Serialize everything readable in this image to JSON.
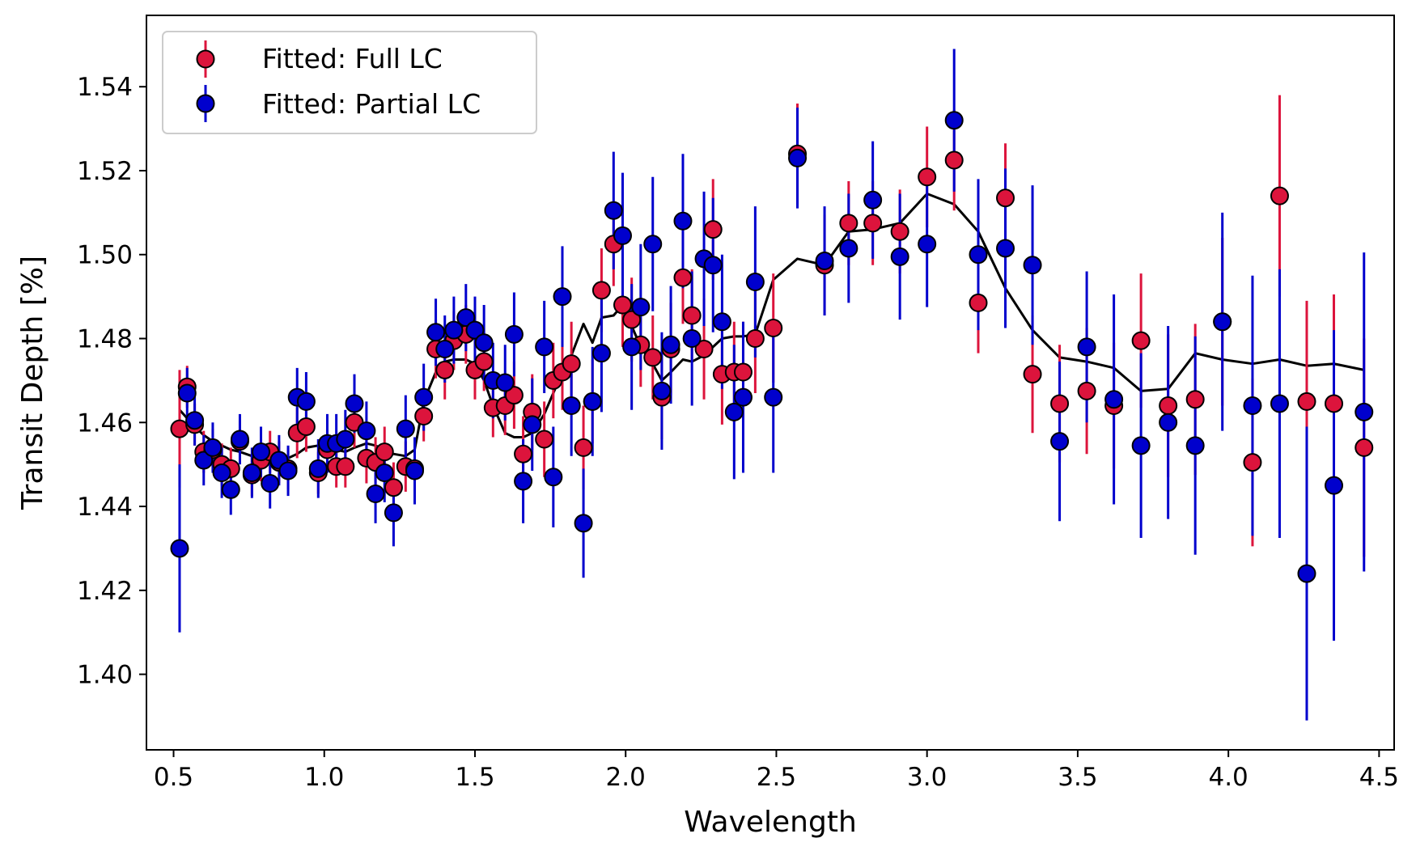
{
  "chart_data": {
    "type": "scatter",
    "title": "",
    "xlabel": "Wavelength",
    "ylabel": "Transit Depth [%]",
    "xlim": [
      0.41,
      4.55
    ],
    "ylim": [
      1.382,
      1.557
    ],
    "x_ticks": [
      0.5,
      1.0,
      1.5,
      2.0,
      2.5,
      3.0,
      3.5,
      4.0,
      4.5
    ],
    "x_tick_labels": [
      "0.5",
      "1.0",
      "1.5",
      "2.0",
      "2.5",
      "3.0",
      "3.5",
      "4.0",
      "4.5"
    ],
    "y_ticks": [
      1.4,
      1.42,
      1.44,
      1.46,
      1.48,
      1.5,
      1.52,
      1.54
    ],
    "y_tick_labels": [
      "1.40",
      "1.42",
      "1.44",
      "1.46",
      "1.48",
      "1.50",
      "1.52",
      "1.54"
    ],
    "grid": false,
    "legend_position": "top-left",
    "series": [
      {
        "name": "Fitted: Full LC",
        "color": "#dc143c",
        "points": [
          [
            0.52,
            1.4585,
            0.014
          ],
          [
            0.545,
            1.4685,
            0.005
          ],
          [
            0.57,
            1.4595,
            0.005
          ],
          [
            0.6,
            1.453,
            0.005
          ],
          [
            0.63,
            1.4535,
            0.005
          ],
          [
            0.66,
            1.45,
            0.005
          ],
          [
            0.69,
            1.449,
            0.005
          ],
          [
            0.72,
            1.4555,
            0.005
          ],
          [
            0.76,
            1.4475,
            0.005
          ],
          [
            0.79,
            1.451,
            0.005
          ],
          [
            0.82,
            1.453,
            0.005
          ],
          [
            0.85,
            1.4505,
            0.005
          ],
          [
            0.88,
            1.449,
            0.005
          ],
          [
            0.91,
            1.4575,
            0.006
          ],
          [
            0.94,
            1.459,
            0.006
          ],
          [
            0.98,
            1.448,
            0.005
          ],
          [
            1.01,
            1.4535,
            0.005
          ],
          [
            1.04,
            1.4495,
            0.005
          ],
          [
            1.07,
            1.4495,
            0.005
          ],
          [
            1.1,
            1.46,
            0.006
          ],
          [
            1.14,
            1.4515,
            0.006
          ],
          [
            1.17,
            1.4505,
            0.006
          ],
          [
            1.2,
            1.453,
            0.006
          ],
          [
            1.23,
            1.4445,
            0.006
          ],
          [
            1.27,
            1.4495,
            0.006
          ],
          [
            1.3,
            1.449,
            0.006
          ],
          [
            1.33,
            1.4615,
            0.006
          ],
          [
            1.37,
            1.4775,
            0.007
          ],
          [
            1.4,
            1.4725,
            0.007
          ],
          [
            1.43,
            1.4795,
            0.007
          ],
          [
            1.47,
            1.481,
            0.007
          ],
          [
            1.5,
            1.4725,
            0.007
          ],
          [
            1.53,
            1.4745,
            0.007
          ],
          [
            1.56,
            1.4635,
            0.007
          ],
          [
            1.6,
            1.464,
            0.007
          ],
          [
            1.63,
            1.4665,
            0.008
          ],
          [
            1.66,
            1.4525,
            0.009
          ],
          [
            1.69,
            1.4625,
            0.009
          ],
          [
            1.73,
            1.456,
            0.009
          ],
          [
            1.76,
            1.47,
            0.009
          ],
          [
            1.79,
            1.472,
            0.009
          ],
          [
            1.82,
            1.474,
            0.01
          ],
          [
            1.86,
            1.454,
            0.01
          ],
          [
            1.89,
            1.465,
            0.01
          ],
          [
            1.92,
            1.4915,
            0.01
          ],
          [
            1.96,
            1.5025,
            0.01
          ],
          [
            1.99,
            1.488,
            0.01
          ],
          [
            2.02,
            1.4845,
            0.01
          ],
          [
            2.05,
            1.4785,
            0.01
          ],
          [
            2.09,
            1.4755,
            0.01
          ],
          [
            2.12,
            1.466,
            0.01
          ],
          [
            2.15,
            1.4775,
            0.011
          ],
          [
            2.19,
            1.4945,
            0.011
          ],
          [
            2.22,
            1.4855,
            0.011
          ],
          [
            2.26,
            1.4775,
            0.012
          ],
          [
            2.29,
            1.506,
            0.012
          ],
          [
            2.32,
            1.4715,
            0.012
          ],
          [
            2.36,
            1.472,
            0.012
          ],
          [
            2.39,
            1.472,
            0.012
          ],
          [
            2.43,
            1.48,
            0.013
          ],
          [
            2.49,
            1.4825,
            0.013
          ],
          [
            2.57,
            1.524,
            0.012
          ],
          [
            2.66,
            1.4975,
            0.012
          ],
          [
            2.74,
            1.5075,
            0.01
          ],
          [
            2.82,
            1.5075,
            0.01
          ],
          [
            2.91,
            1.5055,
            0.01
          ],
          [
            3.0,
            1.5185,
            0.012
          ],
          [
            3.09,
            1.5225,
            0.012
          ],
          [
            3.17,
            1.4885,
            0.012
          ],
          [
            3.26,
            1.5135,
            0.013
          ],
          [
            3.35,
            1.4715,
            0.014
          ],
          [
            3.44,
            1.4645,
            0.014
          ],
          [
            3.53,
            1.4675,
            0.015
          ],
          [
            3.62,
            1.464,
            0.015
          ],
          [
            3.71,
            1.4795,
            0.016
          ],
          [
            3.8,
            1.464,
            0.017
          ],
          [
            3.89,
            1.4655,
            0.018
          ],
          [
            3.98,
            1.484,
            0.02
          ],
          [
            4.08,
            1.4505,
            0.02
          ],
          [
            4.17,
            1.514,
            0.024
          ],
          [
            4.26,
            1.465,
            0.024
          ],
          [
            4.35,
            1.4645,
            0.026
          ],
          [
            4.45,
            1.454,
            0.026
          ]
        ]
      },
      {
        "name": "Fitted: Partial LC",
        "color": "#0000cd",
        "points": [
          [
            0.52,
            1.43,
            0.02
          ],
          [
            0.545,
            1.467,
            0.006
          ],
          [
            0.57,
            1.4605,
            0.006
          ],
          [
            0.6,
            1.451,
            0.006
          ],
          [
            0.63,
            1.454,
            0.006
          ],
          [
            0.66,
            1.448,
            0.006
          ],
          [
            0.69,
            1.444,
            0.006
          ],
          [
            0.72,
            1.456,
            0.006
          ],
          [
            0.76,
            1.448,
            0.006
          ],
          [
            0.79,
            1.453,
            0.006
          ],
          [
            0.82,
            1.4455,
            0.006
          ],
          [
            0.85,
            1.451,
            0.006
          ],
          [
            0.88,
            1.4485,
            0.006
          ],
          [
            0.91,
            1.466,
            0.007
          ],
          [
            0.94,
            1.465,
            0.007
          ],
          [
            0.98,
            1.449,
            0.007
          ],
          [
            1.01,
            1.455,
            0.007
          ],
          [
            1.04,
            1.455,
            0.007
          ],
          [
            1.07,
            1.456,
            0.007
          ],
          [
            1.1,
            1.4645,
            0.007
          ],
          [
            1.14,
            1.458,
            0.007
          ],
          [
            1.17,
            1.443,
            0.007
          ],
          [
            1.2,
            1.448,
            0.007
          ],
          [
            1.23,
            1.4385,
            0.008
          ],
          [
            1.27,
            1.4585,
            0.008
          ],
          [
            1.3,
            1.4485,
            0.008
          ],
          [
            1.33,
            1.466,
            0.008
          ],
          [
            1.37,
            1.4815,
            0.008
          ],
          [
            1.4,
            1.4775,
            0.008
          ],
          [
            1.43,
            1.482,
            0.008
          ],
          [
            1.47,
            1.485,
            0.008
          ],
          [
            1.5,
            1.482,
            0.008
          ],
          [
            1.53,
            1.479,
            0.009
          ],
          [
            1.56,
            1.47,
            0.009
          ],
          [
            1.6,
            1.4695,
            0.009
          ],
          [
            1.63,
            1.481,
            0.01
          ],
          [
            1.66,
            1.446,
            0.01
          ],
          [
            1.69,
            1.4595,
            0.011
          ],
          [
            1.73,
            1.478,
            0.011
          ],
          [
            1.76,
            1.447,
            0.012
          ],
          [
            1.79,
            1.49,
            0.012
          ],
          [
            1.82,
            1.464,
            0.012
          ],
          [
            1.86,
            1.436,
            0.013
          ],
          [
            1.89,
            1.465,
            0.013
          ],
          [
            1.92,
            1.4765,
            0.014
          ],
          [
            1.96,
            1.5105,
            0.014
          ],
          [
            1.99,
            1.5045,
            0.015
          ],
          [
            2.02,
            1.478,
            0.015
          ],
          [
            2.05,
            1.4875,
            0.015
          ],
          [
            2.09,
            1.5025,
            0.016
          ],
          [
            2.12,
            1.4675,
            0.014
          ],
          [
            2.15,
            1.4785,
            0.014
          ],
          [
            2.19,
            1.508,
            0.016
          ],
          [
            2.22,
            1.48,
            0.016
          ],
          [
            2.26,
            1.499,
            0.016
          ],
          [
            2.29,
            1.4975,
            0.016
          ],
          [
            2.32,
            1.484,
            0.016
          ],
          [
            2.36,
            1.4625,
            0.016
          ],
          [
            2.39,
            1.466,
            0.018
          ],
          [
            2.43,
            1.4935,
            0.018
          ],
          [
            2.49,
            1.466,
            0.018
          ],
          [
            2.57,
            1.523,
            0.012
          ],
          [
            2.66,
            1.4985,
            0.013
          ],
          [
            2.74,
            1.5015,
            0.013
          ],
          [
            2.82,
            1.513,
            0.014
          ],
          [
            2.91,
            1.4995,
            0.015
          ],
          [
            3.0,
            1.5025,
            0.015
          ],
          [
            3.09,
            1.532,
            0.017
          ],
          [
            3.17,
            1.5,
            0.018
          ],
          [
            3.26,
            1.5015,
            0.019
          ],
          [
            3.35,
            1.4975,
            0.019
          ],
          [
            3.44,
            1.4555,
            0.019
          ],
          [
            3.53,
            1.478,
            0.018
          ],
          [
            3.62,
            1.4655,
            0.025
          ],
          [
            3.71,
            1.4545,
            0.022
          ],
          [
            3.8,
            1.46,
            0.023
          ],
          [
            3.89,
            1.4545,
            0.026
          ],
          [
            3.98,
            1.484,
            0.026
          ],
          [
            4.08,
            1.464,
            0.031
          ],
          [
            4.17,
            1.4645,
            0.032
          ],
          [
            4.26,
            1.424,
            0.035
          ],
          [
            4.35,
            1.445,
            0.037
          ],
          [
            4.45,
            1.4625,
            0.038
          ]
        ]
      },
      {
        "name": "model",
        "color": "#000000",
        "points": [
          [
            0.52,
            1.463
          ],
          [
            0.545,
            1.461
          ],
          [
            0.57,
            1.459
          ],
          [
            0.6,
            1.457
          ],
          [
            0.63,
            1.4555
          ],
          [
            0.66,
            1.4545
          ],
          [
            0.69,
            1.4535
          ],
          [
            0.72,
            1.453
          ],
          [
            0.76,
            1.452
          ],
          [
            0.79,
            1.4525
          ],
          [
            0.82,
            1.452
          ],
          [
            0.85,
            1.451
          ],
          [
            0.88,
            1.4515
          ],
          [
            0.91,
            1.4525
          ],
          [
            0.94,
            1.454
          ],
          [
            0.98,
            1.4545
          ],
          [
            1.01,
            1.454
          ],
          [
            1.04,
            1.4535
          ],
          [
            1.07,
            1.453
          ],
          [
            1.1,
            1.454
          ],
          [
            1.14,
            1.455
          ],
          [
            1.17,
            1.4545
          ],
          [
            1.2,
            1.4535
          ],
          [
            1.23,
            1.4525
          ],
          [
            1.27,
            1.452
          ],
          [
            1.3,
            1.4535
          ],
          [
            1.33,
            1.465
          ],
          [
            1.37,
            1.472
          ],
          [
            1.4,
            1.4745
          ],
          [
            1.43,
            1.475
          ],
          [
            1.47,
            1.475
          ],
          [
            1.5,
            1.474
          ],
          [
            1.53,
            1.47
          ],
          [
            1.56,
            1.464
          ],
          [
            1.6,
            1.4575
          ],
          [
            1.63,
            1.4565
          ],
          [
            1.66,
            1.4565
          ],
          [
            1.69,
            1.4575
          ],
          [
            1.73,
            1.462
          ],
          [
            1.76,
            1.467
          ],
          [
            1.79,
            1.472
          ],
          [
            1.82,
            1.476
          ],
          [
            1.86,
            1.4835
          ],
          [
            1.89,
            1.479
          ],
          [
            1.92,
            1.485
          ],
          [
            1.96,
            1.4855
          ],
          [
            1.99,
            1.488
          ],
          [
            2.02,
            1.483
          ],
          [
            2.05,
            1.478
          ],
          [
            2.09,
            1.474
          ],
          [
            2.12,
            1.47
          ],
          [
            2.15,
            1.472
          ],
          [
            2.19,
            1.475
          ],
          [
            2.22,
            1.4745
          ],
          [
            2.26,
            1.476
          ],
          [
            2.29,
            1.478
          ],
          [
            2.32,
            1.48
          ],
          [
            2.36,
            1.4805
          ],
          [
            2.39,
            1.4805
          ],
          [
            2.43,
            1.481
          ],
          [
            2.49,
            1.494
          ],
          [
            2.57,
            1.499
          ],
          [
            2.66,
            1.4975
          ],
          [
            2.74,
            1.5055
          ],
          [
            2.82,
            1.506
          ],
          [
            2.91,
            1.5075
          ],
          [
            3.0,
            1.5145
          ],
          [
            3.09,
            1.512
          ],
          [
            3.17,
            1.5055
          ],
          [
            3.26,
            1.492
          ],
          [
            3.35,
            1.482
          ],
          [
            3.44,
            1.4755
          ],
          [
            3.53,
            1.4745
          ],
          [
            3.62,
            1.473
          ],
          [
            3.71,
            1.4675
          ],
          [
            3.8,
            1.468
          ],
          [
            3.89,
            1.4765
          ],
          [
            3.98,
            1.475
          ],
          [
            4.08,
            1.474
          ],
          [
            4.17,
            1.475
          ],
          [
            4.26,
            1.4735
          ],
          [
            4.35,
            1.474
          ],
          [
            4.45,
            1.4725
          ]
        ]
      }
    ]
  }
}
